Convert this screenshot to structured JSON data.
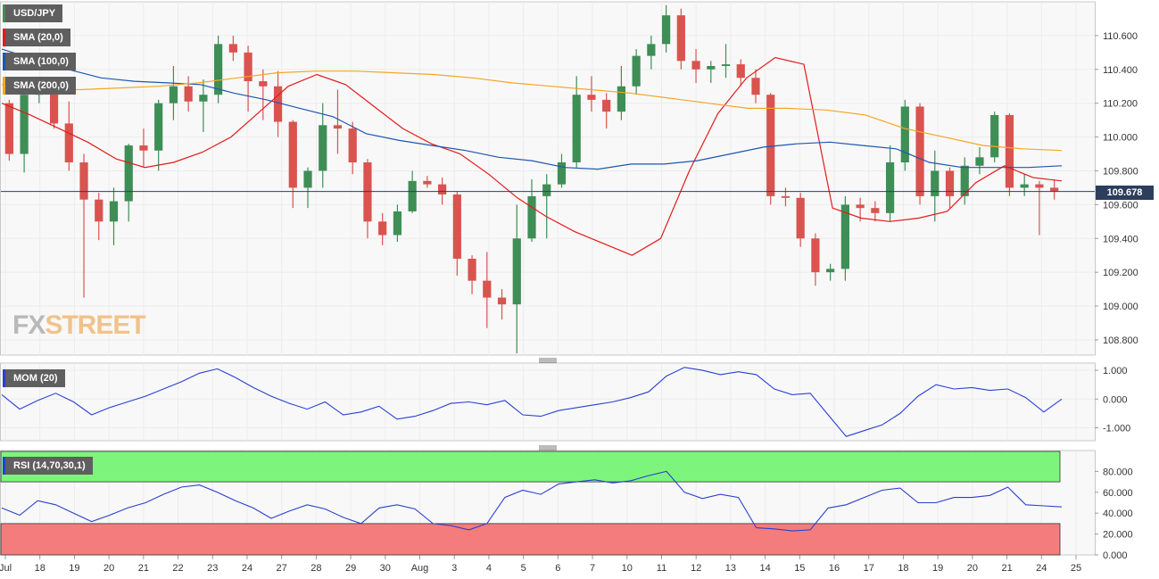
{
  "symbol": "USD/JPY",
  "current_price": "109.678",
  "brand": {
    "part1": "FX",
    "part2": "STREET"
  },
  "indicators": {
    "sma20": {
      "label": "SMA (20,0)",
      "color": "#e31b1b"
    },
    "sma100": {
      "label": "SMA (100,0)",
      "color": "#1f56b0"
    },
    "sma200": {
      "label": "SMA (200,0)",
      "color": "#f5a623"
    },
    "mom": {
      "label": "MOM (20)",
      "color": "#2a3fd0"
    },
    "rsi": {
      "label": "RSI (14,70,30,1)",
      "color": "#2a3fd0"
    }
  },
  "chart_data": [
    {
      "type": "candlestick",
      "title": "USD/JPY",
      "y_ticks": [
        "110.600",
        "110.400",
        "110.200",
        "110.000",
        "109.800",
        "109.600",
        "109.400",
        "109.200",
        "109.000",
        "108.800"
      ],
      "ylim": [
        108.71,
        110.8
      ],
      "x_ticks": [
        "Jul",
        "18",
        "19",
        "20",
        "21",
        "22",
        "23",
        "24",
        "27",
        "28",
        "29",
        "30",
        "Aug",
        "3",
        "4",
        "5",
        "6",
        "7",
        "10",
        "11",
        "12",
        "13",
        "14",
        "15",
        "16",
        "17",
        "18",
        "19",
        "20",
        "21",
        "24",
        "25"
      ],
      "series": [
        {
          "name": "SMA (20,0)",
          "color": "#e31b1b",
          "values": [
            110.2,
            110.13,
            110.05,
            109.97,
            109.87,
            109.82,
            109.85,
            109.91,
            110.0,
            110.15,
            110.3,
            110.37,
            110.31,
            110.18,
            110.05,
            109.96,
            109.9,
            109.78,
            109.64,
            109.53,
            109.44,
            109.37,
            109.3,
            109.4,
            109.8,
            110.14,
            110.35,
            110.47,
            110.43,
            109.58,
            109.52,
            109.5,
            109.52,
            109.56,
            109.73,
            109.83,
            109.76,
            109.74
          ]
        },
        {
          "name": "SMA (100,0)",
          "color": "#1f56b0",
          "values": [
            110.52,
            110.46,
            110.4,
            110.35,
            110.33,
            110.32,
            110.31,
            110.26,
            110.22,
            110.17,
            110.12,
            110.02,
            109.98,
            109.95,
            109.92,
            109.88,
            109.86,
            109.82,
            109.81,
            109.84,
            109.84,
            109.86,
            109.9,
            109.94,
            109.96,
            109.97,
            109.95,
            109.93,
            109.85,
            109.82,
            109.82,
            109.82,
            109.83
          ]
        },
        {
          "name": "SMA (200,0)",
          "color": "#f5a623",
          "values": [
            110.31,
            110.28,
            110.28,
            110.29,
            110.3,
            110.32,
            110.35,
            110.38,
            110.39,
            110.39,
            110.38,
            110.37,
            110.35,
            110.32,
            110.3,
            110.28,
            110.26,
            110.23,
            110.2,
            110.17,
            110.17,
            110.16,
            110.13,
            110.05,
            110.0,
            109.95,
            109.93,
            109.92
          ]
        }
      ],
      "candles": [
        [
          110.2,
          110.22,
          109.86,
          109.9
        ],
        [
          109.9,
          110.28,
          109.79,
          110.25
        ],
        [
          110.25,
          110.34,
          110.2,
          110.26
        ],
        [
          110.26,
          110.3,
          110.05,
          110.08
        ],
        [
          110.08,
          110.21,
          109.8,
          109.85
        ],
        [
          109.85,
          109.9,
          109.05,
          109.63
        ],
        [
          109.63,
          109.67,
          109.39,
          109.5
        ],
        [
          109.5,
          109.7,
          109.36,
          109.62
        ],
        [
          109.62,
          109.96,
          109.5,
          109.95
        ],
        [
          109.95,
          110.05,
          109.82,
          109.92
        ],
        [
          109.92,
          110.22,
          109.8,
          110.2
        ],
        [
          110.2,
          110.42,
          110.1,
          110.3
        ],
        [
          110.3,
          110.36,
          110.15,
          110.21
        ],
        [
          110.21,
          110.34,
          110.03,
          110.25
        ],
        [
          110.25,
          110.6,
          110.2,
          110.55
        ],
        [
          110.55,
          110.6,
          110.45,
          110.5
        ],
        [
          110.5,
          110.54,
          110.15,
          110.33
        ],
        [
          110.33,
          110.4,
          110.1,
          110.3
        ],
        [
          110.3,
          110.39,
          110.0,
          110.09
        ],
        [
          110.09,
          110.1,
          109.58,
          109.7
        ],
        [
          109.7,
          109.82,
          109.58,
          109.8
        ],
        [
          109.8,
          110.2,
          109.7,
          110.07
        ],
        [
          110.07,
          110.28,
          109.9,
          110.05
        ],
        [
          110.05,
          110.09,
          109.78,
          109.85
        ],
        [
          109.85,
          109.87,
          109.4,
          109.5
        ],
        [
          109.5,
          109.55,
          109.36,
          109.42
        ],
        [
          109.42,
          109.6,
          109.38,
          109.56
        ],
        [
          109.56,
          109.8,
          109.55,
          109.74
        ],
        [
          109.74,
          109.77,
          109.7,
          109.72
        ],
        [
          109.72,
          109.76,
          109.6,
          109.66
        ],
        [
          109.66,
          109.68,
          109.18,
          109.28
        ],
        [
          109.28,
          109.3,
          109.07,
          109.15
        ],
        [
          109.15,
          109.32,
          108.87,
          109.05
        ],
        [
          109.05,
          109.1,
          108.92,
          109.01
        ],
        [
          109.01,
          109.6,
          108.72,
          109.4
        ],
        [
          109.4,
          109.75,
          109.38,
          109.65
        ],
        [
          109.65,
          109.78,
          109.4,
          109.72
        ],
        [
          109.72,
          109.9,
          109.7,
          109.85
        ],
        [
          109.85,
          110.36,
          109.82,
          110.25
        ],
        [
          110.25,
          110.36,
          110.15,
          110.22
        ],
        [
          110.22,
          110.26,
          110.05,
          110.15
        ],
        [
          110.15,
          110.42,
          110.1,
          110.3
        ],
        [
          110.3,
          110.52,
          110.25,
          110.48
        ],
        [
          110.48,
          110.6,
          110.4,
          110.55
        ],
        [
          110.55,
          110.78,
          110.5,
          110.72
        ],
        [
          110.72,
          110.76,
          110.4,
          110.45
        ],
        [
          110.45,
          110.52,
          110.32,
          110.4
        ],
        [
          110.4,
          110.45,
          110.32,
          110.42
        ],
        [
          110.42,
          110.55,
          110.35,
          110.43
        ],
        [
          110.43,
          110.46,
          110.3,
          110.35
        ],
        [
          110.35,
          110.4,
          110.2,
          110.25
        ],
        [
          110.25,
          110.26,
          109.6,
          109.65
        ],
        [
          109.65,
          109.7,
          109.59,
          109.64
        ],
        [
          109.64,
          109.67,
          109.35,
          109.4
        ],
        [
          109.4,
          109.43,
          109.12,
          109.2
        ],
        [
          109.2,
          109.25,
          109.15,
          109.22
        ],
        [
          109.22,
          109.65,
          109.15,
          109.6
        ],
        [
          109.6,
          109.64,
          109.5,
          109.58
        ],
        [
          109.58,
          109.62,
          109.5,
          109.55
        ],
        [
          109.55,
          109.95,
          109.5,
          109.85
        ],
        [
          109.85,
          110.22,
          109.8,
          110.18
        ],
        [
          110.18,
          110.2,
          109.6,
          109.65
        ],
        [
          109.65,
          109.92,
          109.5,
          109.8
        ],
        [
          109.8,
          109.82,
          109.58,
          109.65
        ],
        [
          109.65,
          109.88,
          109.6,
          109.83
        ],
        [
          109.83,
          109.94,
          109.78,
          109.88
        ],
        [
          109.88,
          110.15,
          109.85,
          110.13
        ],
        [
          110.13,
          110.14,
          109.65,
          109.7
        ],
        [
          109.7,
          109.78,
          109.65,
          109.72
        ],
        [
          109.72,
          109.74,
          109.42,
          109.7
        ],
        [
          109.7,
          109.75,
          109.63,
          109.68
        ]
      ]
    },
    {
      "type": "line",
      "title": "MOM (20)",
      "y_ticks": [
        "1.000",
        "0.000",
        "-1.000"
      ],
      "ylim": [
        -1.45,
        1.25
      ],
      "series": [
        {
          "name": "MOM (20)",
          "color": "#2a3fd0",
          "values": [
            0.15,
            -0.35,
            -0.05,
            0.2,
            -0.1,
            -0.55,
            -0.3,
            -0.1,
            0.1,
            0.35,
            0.6,
            0.9,
            1.05,
            0.75,
            0.4,
            0.1,
            -0.15,
            -0.35,
            -0.1,
            -0.55,
            -0.45,
            -0.25,
            -0.7,
            -0.6,
            -0.4,
            -0.15,
            -0.1,
            -0.2,
            -0.05,
            -0.55,
            -0.6,
            -0.4,
            -0.3,
            -0.2,
            -0.1,
            0.05,
            0.25,
            0.8,
            1.1,
            1.0,
            0.85,
            0.95,
            0.85,
            0.35,
            0.15,
            0.2,
            -0.55,
            -1.3,
            -1.1,
            -0.9,
            -0.5,
            0.1,
            0.5,
            0.35,
            0.4,
            0.3,
            0.35,
            0.05,
            -0.45,
            0.0
          ]
        }
      ]
    },
    {
      "type": "line",
      "title": "RSI (14,70,30,1)",
      "y_ticks": [
        "80.000",
        "60.000",
        "40.000",
        "20.000",
        "0.000"
      ],
      "ylim": [
        0,
        100
      ],
      "bands": {
        "overbought": 70,
        "oversold": 30
      },
      "series": [
        {
          "name": "RSI (14,70,30,1)",
          "color": "#2a3fd0",
          "values": [
            45,
            38,
            52,
            48,
            40,
            32,
            38,
            45,
            50,
            58,
            65,
            67,
            60,
            52,
            45,
            35,
            42,
            48,
            44,
            36,
            30,
            45,
            48,
            44,
            30,
            28,
            24,
            30,
            55,
            62,
            58,
            68,
            70,
            72,
            69,
            71,
            76,
            80,
            60,
            54,
            58,
            55,
            26,
            25,
            23,
            24,
            45,
            48,
            55,
            62,
            64,
            50,
            50,
            55,
            55,
            57,
            65,
            48,
            47,
            46
          ]
        }
      ]
    }
  ]
}
